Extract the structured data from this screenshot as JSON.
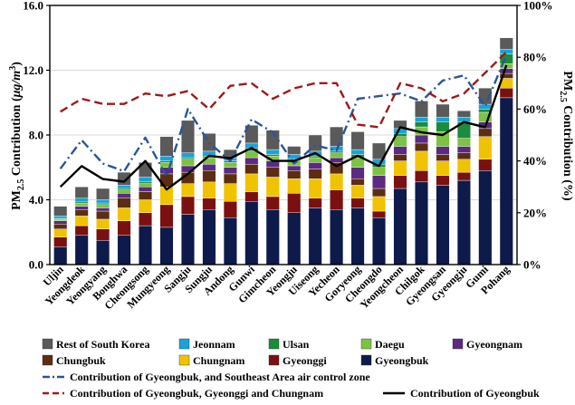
{
  "chart_data": {
    "type": "bar",
    "stacked": true,
    "title": "",
    "ylabel": "PM2.5 Contribution (μg/m³)",
    "ylabel_parts": {
      "pre": "PM",
      "sub": "2.5",
      "mid": " Contribution (",
      "unit": "μg/m",
      "sup": "3",
      "post": ")"
    },
    "y2label": "PM2.5 Contribution (%)",
    "y2label_parts": {
      "pre": "PM",
      "sub": "2.5",
      "post": " Contribution (%)"
    },
    "ylim": [
      0,
      16
    ],
    "y2lim": [
      0,
      100
    ],
    "yticks": [
      "0.0",
      "4.0",
      "8.0",
      "12.0",
      "16.0"
    ],
    "y2ticks": [
      "0%",
      "20%",
      "40%",
      "60%",
      "80%",
      "100%"
    ],
    "categories": [
      "Uljin",
      "Yeongdeok",
      "Yeongyang",
      "Bonghwa",
      "Cheongsong",
      "Mungyeong",
      "Sangju",
      "Sungju",
      "Andong",
      "Gunwi",
      "Gimcheon",
      "Yeongju",
      "Uiseong",
      "Yecheon",
      "Goryeong",
      "Cheongdo",
      "Yeongcheon",
      "Chilgok",
      "Gyeongsan",
      "Gyeongju",
      "Gumi",
      "Pohang"
    ],
    "series": [
      {
        "name": "Gyeongbuk",
        "color": "#0d1a4a",
        "values": [
          1.1,
          1.8,
          1.5,
          1.8,
          2.4,
          2.3,
          3.1,
          3.4,
          2.9,
          3.9,
          3.4,
          3.2,
          3.5,
          3.4,
          3.5,
          2.9,
          4.7,
          5.1,
          4.9,
          5.2,
          5.8,
          10.3
        ]
      },
      {
        "name": "Gyeonggi",
        "color": "#7a1010",
        "values": [
          0.6,
          0.6,
          0.7,
          0.9,
          0.8,
          1.4,
          1.1,
          0.7,
          1.0,
          0.6,
          0.8,
          1.2,
          0.6,
          1.2,
          0.6,
          0.4,
          0.8,
          0.7,
          0.6,
          0.5,
          0.7,
          0.6
        ]
      },
      {
        "name": "Chungnam",
        "color": "#f0c300",
        "values": [
          0.5,
          0.6,
          0.6,
          0.8,
          0.8,
          1.1,
          0.8,
          1.0,
          1.1,
          1.1,
          1.2,
          0.9,
          1.2,
          1.0,
          0.8,
          0.9,
          0.9,
          1.2,
          0.9,
          0.8,
          1.4,
          0.6
        ]
      },
      {
        "name": "Chungbuk",
        "color": "#5c2d12",
        "values": [
          0.3,
          0.4,
          0.5,
          0.6,
          0.5,
          0.8,
          0.7,
          0.7,
          0.6,
          0.6,
          0.6,
          0.5,
          0.6,
          0.7,
          0.4,
          0.5,
          0.4,
          0.5,
          0.4,
          0.4,
          0.5,
          0.3
        ]
      },
      {
        "name": "Gyeongnam",
        "color": "#5b2a82",
        "values": [
          0.2,
          0.2,
          0.2,
          0.3,
          0.3,
          0.4,
          0.4,
          0.4,
          0.4,
          0.4,
          0.4,
          0.3,
          0.4,
          0.3,
          0.7,
          0.8,
          0.5,
          0.5,
          0.5,
          0.4,
          0.4,
          0.3
        ]
      },
      {
        "name": "Daegu",
        "color": "#7dc242",
        "values": [
          0.1,
          0.2,
          0.2,
          0.2,
          0.2,
          0.3,
          0.4,
          0.4,
          0.3,
          0.4,
          0.3,
          0.3,
          0.3,
          0.3,
          0.6,
          0.5,
          0.6,
          0.5,
          0.9,
          0.5,
          0.6,
          0.3
        ]
      },
      {
        "name": "Ulsan",
        "color": "#1a8c3c",
        "values": [
          0.05,
          0.1,
          0.1,
          0.1,
          0.1,
          0.1,
          0.1,
          0.1,
          0.1,
          0.2,
          0.1,
          0.1,
          0.1,
          0.1,
          0.2,
          0.2,
          0.2,
          0.3,
          0.6,
          1.0,
          0.2,
          0.6
        ]
      },
      {
        "name": "Jeonnam",
        "color": "#1aa3d8",
        "values": [
          0.15,
          0.2,
          0.2,
          0.2,
          0.3,
          0.3,
          0.3,
          0.3,
          0.2,
          0.3,
          0.3,
          0.3,
          0.3,
          0.3,
          0.3,
          0.3,
          0.3,
          0.3,
          0.3,
          0.3,
          0.3,
          0.3
        ]
      },
      {
        "name": "Rest of South Korea",
        "color": "#5a5a5a",
        "values": [
          0.6,
          0.7,
          0.7,
          0.8,
          0.9,
          1.2,
          2.0,
          1.1,
          0.5,
          1.1,
          1.2,
          0.5,
          1.0,
          1.2,
          1.1,
          1.0,
          0.5,
          1.0,
          0.8,
          0.4,
          1.0,
          0.7
        ]
      }
    ],
    "lines": [
      {
        "name": "Contribution of Gyeongbuk, and Southeast Area air control zone",
        "color": "#2a5599",
        "style": "dash-dot",
        "axis": "right",
        "values": [
          37,
          48,
          39,
          36,
          49,
          34,
          60,
          47,
          40,
          56,
          51,
          39,
          46,
          44,
          64,
          65,
          66,
          63,
          71,
          73,
          61,
          81
        ]
      },
      {
        "name": "Contribution of Gyeongbuk, Gyeonggi and Chungnam",
        "color": "#a01818",
        "style": "dash",
        "axis": "right",
        "values": [
          59,
          64,
          62,
          62,
          66,
          65,
          67,
          60,
          69,
          70,
          64,
          68,
          70,
          70,
          54,
          53,
          70,
          68,
          63,
          66,
          74,
          82
        ]
      },
      {
        "name": "Contribution of Gyeongbuk",
        "color": "#000000",
        "style": "solid",
        "axis": "right",
        "values": [
          30,
          38,
          33,
          32,
          40,
          29,
          35,
          42,
          41,
          45,
          40,
          40,
          43,
          38,
          42,
          38,
          53,
          51,
          50,
          55,
          53,
          77
        ]
      }
    ],
    "legend_position": "bottom"
  }
}
